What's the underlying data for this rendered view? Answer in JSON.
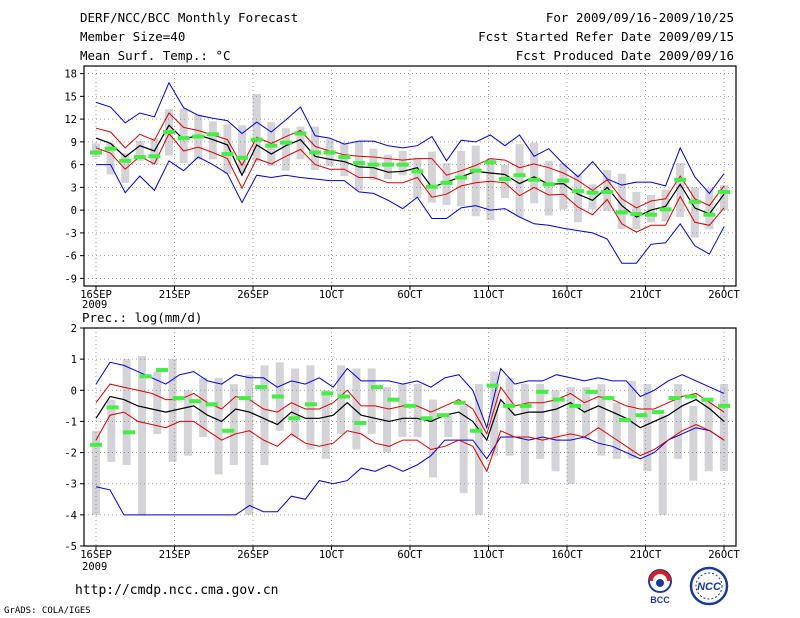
{
  "header": {
    "title": "DERF/NCC/BCC Monthly Forecast",
    "member": "Member Size=40",
    "variable": "Mean Surf. Temp.: °C",
    "period": "For 2009/09/16-2009/10/25",
    "refer": "Fcst Started Refer Date 2009/09/15",
    "produced": "Fcst Produced Date 2009/09/16"
  },
  "footer": {
    "url": "http://cmdp.ncc.cma.gov.cn",
    "credit": "GrADS: COLA/IGES",
    "logo_bcc": "BCC",
    "logo_ncc": "NCC"
  },
  "colors": {
    "envelope": "#0000dd",
    "spread": "#dd0000",
    "mean": "#000000",
    "marker": "#44ee44",
    "box": "#d3d3d8",
    "grid": "#888888"
  },
  "chart_data": [
    {
      "type": "line",
      "title": "Mean Surf. Temp.: °C",
      "x_labels": [
        "16SEP",
        "21SEP",
        "26SEP",
        "1OCT",
        "6OCT",
        "11OCT",
        "16OCT",
        "21OCT",
        "26OCT"
      ],
      "x_sublabel": "2009",
      "days": 40,
      "ylim": [
        -10,
        19
      ],
      "yticks": [
        -9,
        -6,
        -3,
        0,
        3,
        6,
        9,
        12,
        15,
        18
      ],
      "series": [
        {
          "name": "ensemble max",
          "values": [
            14.2,
            13.6,
            11.5,
            12.8,
            12.3,
            16.8,
            13.5,
            12.5,
            12.1,
            11.8,
            10.1,
            11.6,
            10.3,
            11.9,
            13.6,
            9.8,
            9.5,
            8.7,
            9.1,
            9.1,
            8.5,
            8.2,
            8.5,
            9.7,
            6.5,
            9.2,
            9.0,
            9.9,
            8.5,
            9.9,
            7.1,
            8.1,
            6.1,
            4.4,
            6.4,
            4.1,
            3.3,
            3.7,
            3.7,
            3.2,
            8.2,
            4.4,
            2.2,
            4.8
          ]
        },
        {
          "name": "spread upper",
          "values": [
            10.8,
            10.3,
            8.2,
            10.0,
            9.2,
            12.8,
            10.9,
            10.5,
            9.9,
            9.3,
            5.9,
            9.6,
            8.8,
            9.7,
            10.5,
            8.4,
            7.8,
            7.3,
            7.1,
            7.0,
            6.8,
            6.6,
            6.8,
            6.8,
            4.6,
            5.2,
            5.9,
            6.8,
            6.6,
            5.6,
            6.1,
            5.6,
            4.9,
            3.9,
            2.6,
            4.0,
            1.5,
            0.3,
            1.2,
            1.5,
            4.5,
            1.5,
            0.6,
            3.2
          ]
        },
        {
          "name": "ensemble mean",
          "values": [
            9.5,
            8.8,
            7.0,
            8.5,
            7.8,
            11.2,
            9.3,
            9.9,
            9.3,
            8.6,
            4.6,
            8.6,
            7.4,
            8.5,
            9.3,
            7.1,
            6.7,
            6.4,
            5.7,
            5.6,
            5.0,
            5.1,
            5.6,
            3.0,
            3.7,
            4.4,
            5.1,
            4.9,
            4.7,
            3.5,
            4.4,
            3.4,
            3.5,
            2.1,
            1.3,
            3.0,
            0.6,
            -0.9,
            0.0,
            0.5,
            3.4,
            0.3,
            -0.5,
            2.1
          ]
        },
        {
          "name": "spread lower",
          "values": [
            8.2,
            7.5,
            5.4,
            7.1,
            6.1,
            10.1,
            7.8,
            8.3,
            7.6,
            6.8,
            2.9,
            6.8,
            6.1,
            7.1,
            8.0,
            6.0,
            5.4,
            5.4,
            4.3,
            4.3,
            3.6,
            3.6,
            4.3,
            1.7,
            2.1,
            3.2,
            3.6,
            3.8,
            3.6,
            1.9,
            3.0,
            2.0,
            2.1,
            0.4,
            -0.6,
            1.4,
            -1.8,
            -2.9,
            -2.0,
            -2.0,
            1.8,
            -1.6,
            -2.0,
            0.3
          ]
        },
        {
          "name": "ensemble min",
          "values": [
            6.0,
            6.0,
            2.3,
            4.5,
            2.6,
            6.5,
            5.2,
            7.0,
            6.0,
            4.8,
            1.0,
            4.6,
            4.3,
            4.6,
            4.3,
            4.1,
            3.9,
            3.9,
            2.4,
            2.2,
            1.3,
            0.2,
            1.7,
            -1.1,
            -1.1,
            0.3,
            0.6,
            0.0,
            0.2,
            -0.9,
            -1.8,
            -2.0,
            -2.4,
            -2.7,
            -3.0,
            -3.8,
            -7.0,
            -7.0,
            -4.5,
            -4.3,
            -1.8,
            -4.7,
            -5.8,
            -2.2
          ]
        },
        {
          "name": "box top",
          "values": [
            8.8,
            8.8,
            7.5,
            9.1,
            9.5,
            13.3,
            13.4,
            12.6,
            11.7,
            11.3,
            11.2,
            15.3,
            11.6,
            10.8,
            11.0,
            11.0,
            9.4,
            8.8,
            9.1,
            8.1,
            7.3,
            7.8,
            6.9,
            7.7,
            6.2,
            7.8,
            8.5,
            6.8,
            6.0,
            8.7,
            8.9,
            6.5,
            6.2,
            4.7,
            3.4,
            5.3,
            4.8,
            2.4,
            2.0,
            2.7,
            6.2,
            3.0,
            2.9,
            3.3
          ]
        },
        {
          "name": "box bottom",
          "values": [
            7.0,
            4.7,
            3.6,
            6.5,
            6.0,
            7.2,
            6.2,
            6.7,
            6.7,
            4.8,
            4.9,
            6.4,
            5.8,
            5.2,
            6.7,
            5.3,
            5.8,
            4.5,
            2.6,
            4.0,
            4.1,
            4.6,
            1.6,
            1.0,
            0.7,
            0.5,
            -0.8,
            -1.3,
            1.6,
            -0.9,
            0.9,
            -0.7,
            0.1,
            -1.6,
            0.1,
            -0.1,
            -2.5,
            -2.5,
            -1.6,
            -1.5,
            -0.9,
            -3.6,
            -2.5,
            0.0
          ]
        },
        {
          "name": "observed",
          "values": [
            7.6,
            8.1,
            6.5,
            7.0,
            7.1,
            10.3,
            9.5,
            9.7,
            10.0,
            7.4,
            6.9,
            9.3,
            8.5,
            8.9,
            10.1,
            7.6,
            7.6,
            7.0,
            6.2,
            6.0,
            6.0,
            6.0,
            5.1,
            3.1,
            3.6,
            4.3,
            5.2,
            6.3,
            4.1,
            4.6,
            4.0,
            3.4,
            3.9,
            2.5,
            2.3,
            2.4,
            -0.3,
            -0.5,
            -0.6,
            0.1,
            4.0,
            1.1,
            -0.6,
            2.4
          ]
        }
      ]
    },
    {
      "type": "line",
      "title": "Prec.: log(mm/d)",
      "x_labels": [
        "16SEP",
        "21SEP",
        "26SEP",
        "1OCT",
        "6OCT",
        "11OCT",
        "16OCT",
        "21OCT",
        "26OCT"
      ],
      "x_sublabel": "2009",
      "days": 40,
      "ylim": [
        -5,
        2
      ],
      "yticks": [
        -5,
        -4,
        -3,
        -2,
        -1,
        0,
        1,
        2
      ],
      "series": [
        {
          "name": "ensemble max",
          "values": [
            0.2,
            0.9,
            0.8,
            0.6,
            0.4,
            0.2,
            0.5,
            0.6,
            0.3,
            0.2,
            0.5,
            0.4,
            0.4,
            0.1,
            0.3,
            0.2,
            0.4,
            0.1,
            0.7,
            0.3,
            0.3,
            0.3,
            0.2,
            0.3,
            0.1,
            0.4,
            0.5,
            0.0,
            -1.2,
            0.7,
            0.2,
            0.3,
            0.3,
            0.5,
            0.4,
            0.3,
            0.4,
            0.3,
            0.3,
            -0.2,
            0.0,
            0.3,
            0.5,
            0.3,
            0.1,
            -0.1
          ]
        },
        {
          "name": "spread upper",
          "values": [
            -0.4,
            0.2,
            0.1,
            0.0,
            -0.1,
            -0.3,
            -0.3,
            -0.1,
            -0.4,
            -0.6,
            -0.2,
            -0.3,
            -0.6,
            -0.7,
            -0.4,
            -0.6,
            -0.6,
            -0.4,
            0.0,
            -0.5,
            -0.5,
            -0.6,
            -0.5,
            -0.5,
            -0.7,
            -0.5,
            -0.3,
            -0.6,
            -1.4,
            0.1,
            -0.5,
            -0.4,
            -0.4,
            -0.3,
            -0.1,
            -0.4,
            -0.2,
            -0.3,
            -0.5,
            -0.6,
            -0.6,
            -0.4,
            -0.2,
            -0.1,
            -0.4,
            -0.7
          ]
        },
        {
          "name": "ensemble mean",
          "values": [
            -0.9,
            -0.2,
            -0.3,
            -0.5,
            -0.6,
            -0.7,
            -0.6,
            -0.5,
            -0.8,
            -1.0,
            -0.6,
            -0.7,
            -0.9,
            -1.1,
            -0.7,
            -0.9,
            -0.9,
            -0.8,
            -0.4,
            -0.8,
            -0.9,
            -1.0,
            -0.9,
            -0.9,
            -1.0,
            -0.8,
            -0.7,
            -1.0,
            -1.6,
            -0.3,
            -0.8,
            -0.7,
            -0.7,
            -0.6,
            -0.4,
            -0.7,
            -0.5,
            -0.7,
            -0.9,
            -1.2,
            -1.0,
            -0.8,
            -0.5,
            -0.3,
            -0.6,
            -1.0
          ]
        },
        {
          "name": "spread lower",
          "values": [
            -1.6,
            -0.8,
            -0.7,
            -1.0,
            -1.1,
            -1.2,
            -1.0,
            -1.0,
            -1.3,
            -1.6,
            -1.4,
            -1.3,
            -1.6,
            -1.8,
            -1.4,
            -1.7,
            -1.8,
            -1.7,
            -1.3,
            -1.4,
            -1.7,
            -1.8,
            -1.6,
            -1.6,
            -1.9,
            -1.8,
            -1.6,
            -1.8,
            -2.6,
            -1.3,
            -1.5,
            -1.5,
            -1.6,
            -1.5,
            -1.4,
            -1.5,
            -1.2,
            -1.5,
            -1.8,
            -2.1,
            -1.9,
            -1.6,
            -1.3,
            -1.1,
            -1.3,
            -1.6
          ]
        },
        {
          "name": "ensemble min",
          "values": [
            -3.1,
            -3.2,
            -4.0,
            -4.0,
            -4.0,
            -4.0,
            -4.0,
            -4.0,
            -4.0,
            -4.0,
            -4.0,
            -3.7,
            -3.9,
            -3.9,
            -3.4,
            -3.5,
            -2.9,
            -3.0,
            -2.9,
            -2.5,
            -2.6,
            -2.4,
            -2.6,
            -2.4,
            -2.1,
            -1.6,
            -1.6,
            -1.6,
            -2.2,
            -1.5,
            -1.5,
            -1.6,
            -1.5,
            -1.6,
            -1.6,
            -1.5,
            -1.7,
            -1.8,
            -2.0,
            -2.2,
            -2.0,
            -1.6,
            -1.4,
            -1.2,
            -1.3,
            -1.6
          ]
        },
        {
          "name": "box top",
          "values": [
            -1.3,
            -0.3,
            1.0,
            1.1,
            0.6,
            1.0,
            0.0,
            0.4,
            0.4,
            0.2,
            0.5,
            0.8,
            0.9,
            0.7,
            0.8,
            0.0,
            0.8,
            0.7,
            0.7,
            0.1,
            0.2,
            0.2,
            -0.3,
            -0.8,
            -0.5,
            0.2,
            0.6,
            0.4,
            0.2,
            0.2,
            0.0,
            0.1,
            0.1,
            0.2,
            -0.4,
            0.3,
            0.2,
            -0.8,
            0.2,
            -0.5,
            -0.3,
            0.2,
            0.5,
            0.4,
            0.0,
            0.2,
            -0.1
          ]
        },
        {
          "name": "box bottom",
          "values": [
            -4.0,
            -2.3,
            -2.4,
            -4.0,
            -1.4,
            -2.3,
            -2.1,
            -1.5,
            -2.7,
            -2.4,
            -4.0,
            -2.4,
            -1.3,
            -1.5,
            -1.9,
            -2.2,
            -1.4,
            -1.9,
            -1.4,
            -2.0,
            -1.5,
            -1.5,
            -2.8,
            -1.5,
            -3.3,
            -4.0,
            -2.1,
            -2.1,
            -3.0,
            -2.2,
            -2.6,
            -3.0,
            -1.6,
            -2.1,
            -2.2,
            -2.2,
            -2.6,
            -4.0,
            -2.2,
            -2.9,
            -2.6,
            -2.6
          ]
        },
        {
          "name": "observed",
          "values": [
            -1.75,
            -0.55,
            -1.35,
            0.45,
            0.65,
            -0.25,
            -0.35,
            -0.45,
            -1.3,
            -0.25,
            0.1,
            -0.2,
            -0.9,
            -0.45,
            -0.1,
            -0.2,
            -1.05,
            0.1,
            -0.3,
            -0.5,
            -0.9,
            -0.8,
            -0.4,
            -1.3,
            0.15,
            -0.5,
            -0.5,
            -0.05,
            -0.3,
            -0.5,
            -0.05,
            -0.25,
            -0.95,
            -0.8,
            -0.7,
            -0.25,
            -0.2,
            -0.3,
            -0.5
          ]
        }
      ]
    }
  ]
}
